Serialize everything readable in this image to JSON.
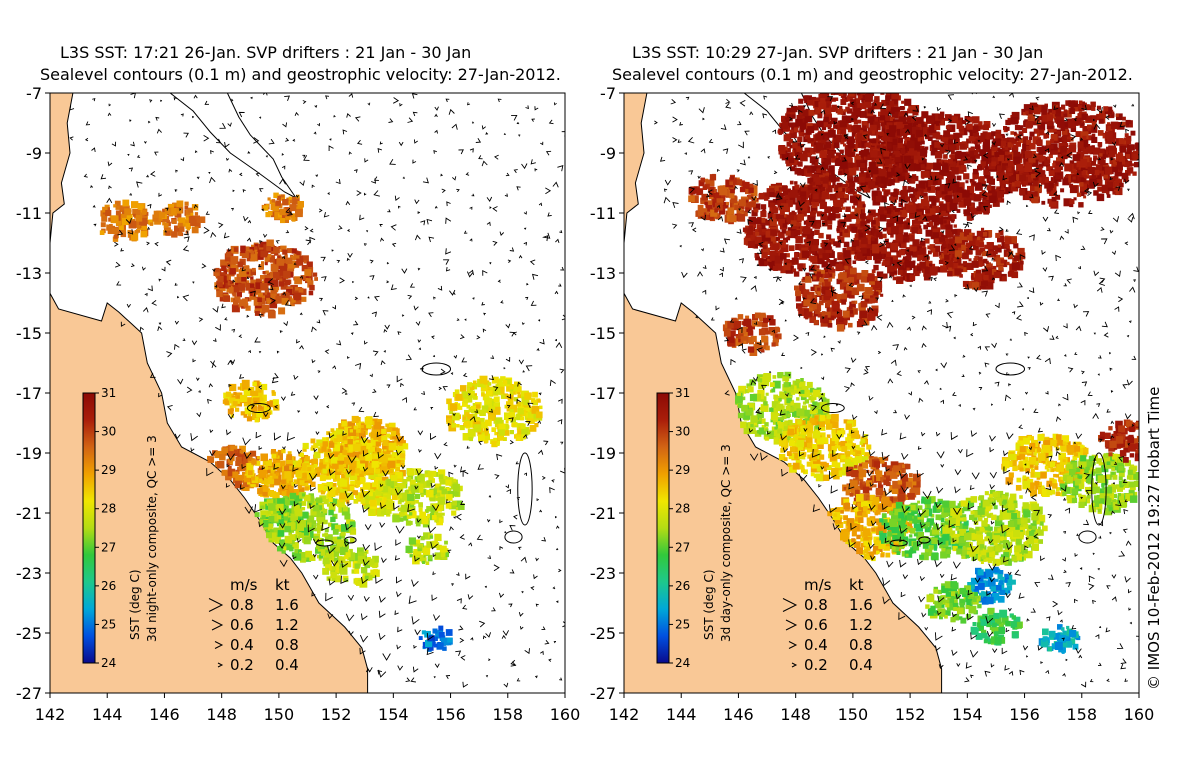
{
  "panels": [
    {
      "title_line1": "L3S SST: 17:21 26-Jan. SVP drifters : 21 Jan - 30 Jan",
      "title_line2": "Sealevel contours (0.1 m) and geostrophic velocity: 27-Jan-2012.",
      "colorbar_label": "SST (deg C)",
      "composite_label": "3d night-only composite, QC >= 3",
      "mode": "night"
    },
    {
      "title_line1": "L3S SST: 10:29 27-Jan. SVP drifters : 21 Jan - 30 Jan",
      "title_line2": "Sealevel contours (0.1 m) and geostrophic velocity: 27-Jan-2012.",
      "colorbar_label": "SST (deg C)",
      "composite_label": "3d day-only composite, QC >= 3",
      "mode": "day"
    }
  ],
  "axes": {
    "lon_ticks": [
      "142",
      "144",
      "146",
      "148",
      "150",
      "152",
      "154",
      "156",
      "158",
      "160"
    ],
    "lat_ticks": [
      "-7",
      "-9",
      "-11",
      "-13",
      "-15",
      "-17",
      "-19",
      "-21",
      "-23",
      "-25",
      "-27"
    ],
    "lon_range": [
      142,
      160
    ],
    "lat_range": [
      -27,
      -7
    ]
  },
  "colorbar": {
    "ticks": [
      "31",
      "30",
      "29",
      "28",
      "27",
      "26",
      "25",
      "24"
    ],
    "range": [
      24,
      31
    ],
    "stops": [
      "#0a0a8c",
      "#0050e0",
      "#00a8d8",
      "#1ec88c",
      "#32c83c",
      "#b4dc14",
      "#f0e600",
      "#f0a000",
      "#d26414",
      "#aa1e0a",
      "#8c0a05"
    ]
  },
  "speed_legend": {
    "header_ms": "m/s",
    "header_kt": "kt",
    "rows": [
      {
        "ms": "0.8",
        "kt": "1.6"
      },
      {
        "ms": "0.6",
        "kt": "1.2"
      },
      {
        "ms": "0.4",
        "kt": "0.8"
      },
      {
        "ms": "0.2",
        "kt": "0.4"
      }
    ]
  },
  "credit": "© IMOS 10-Feb-2012 19:27 Hobart Time",
  "colors": {
    "land": "#f9c896",
    "coast": "#000000",
    "ocean": "#ffffff"
  }
}
